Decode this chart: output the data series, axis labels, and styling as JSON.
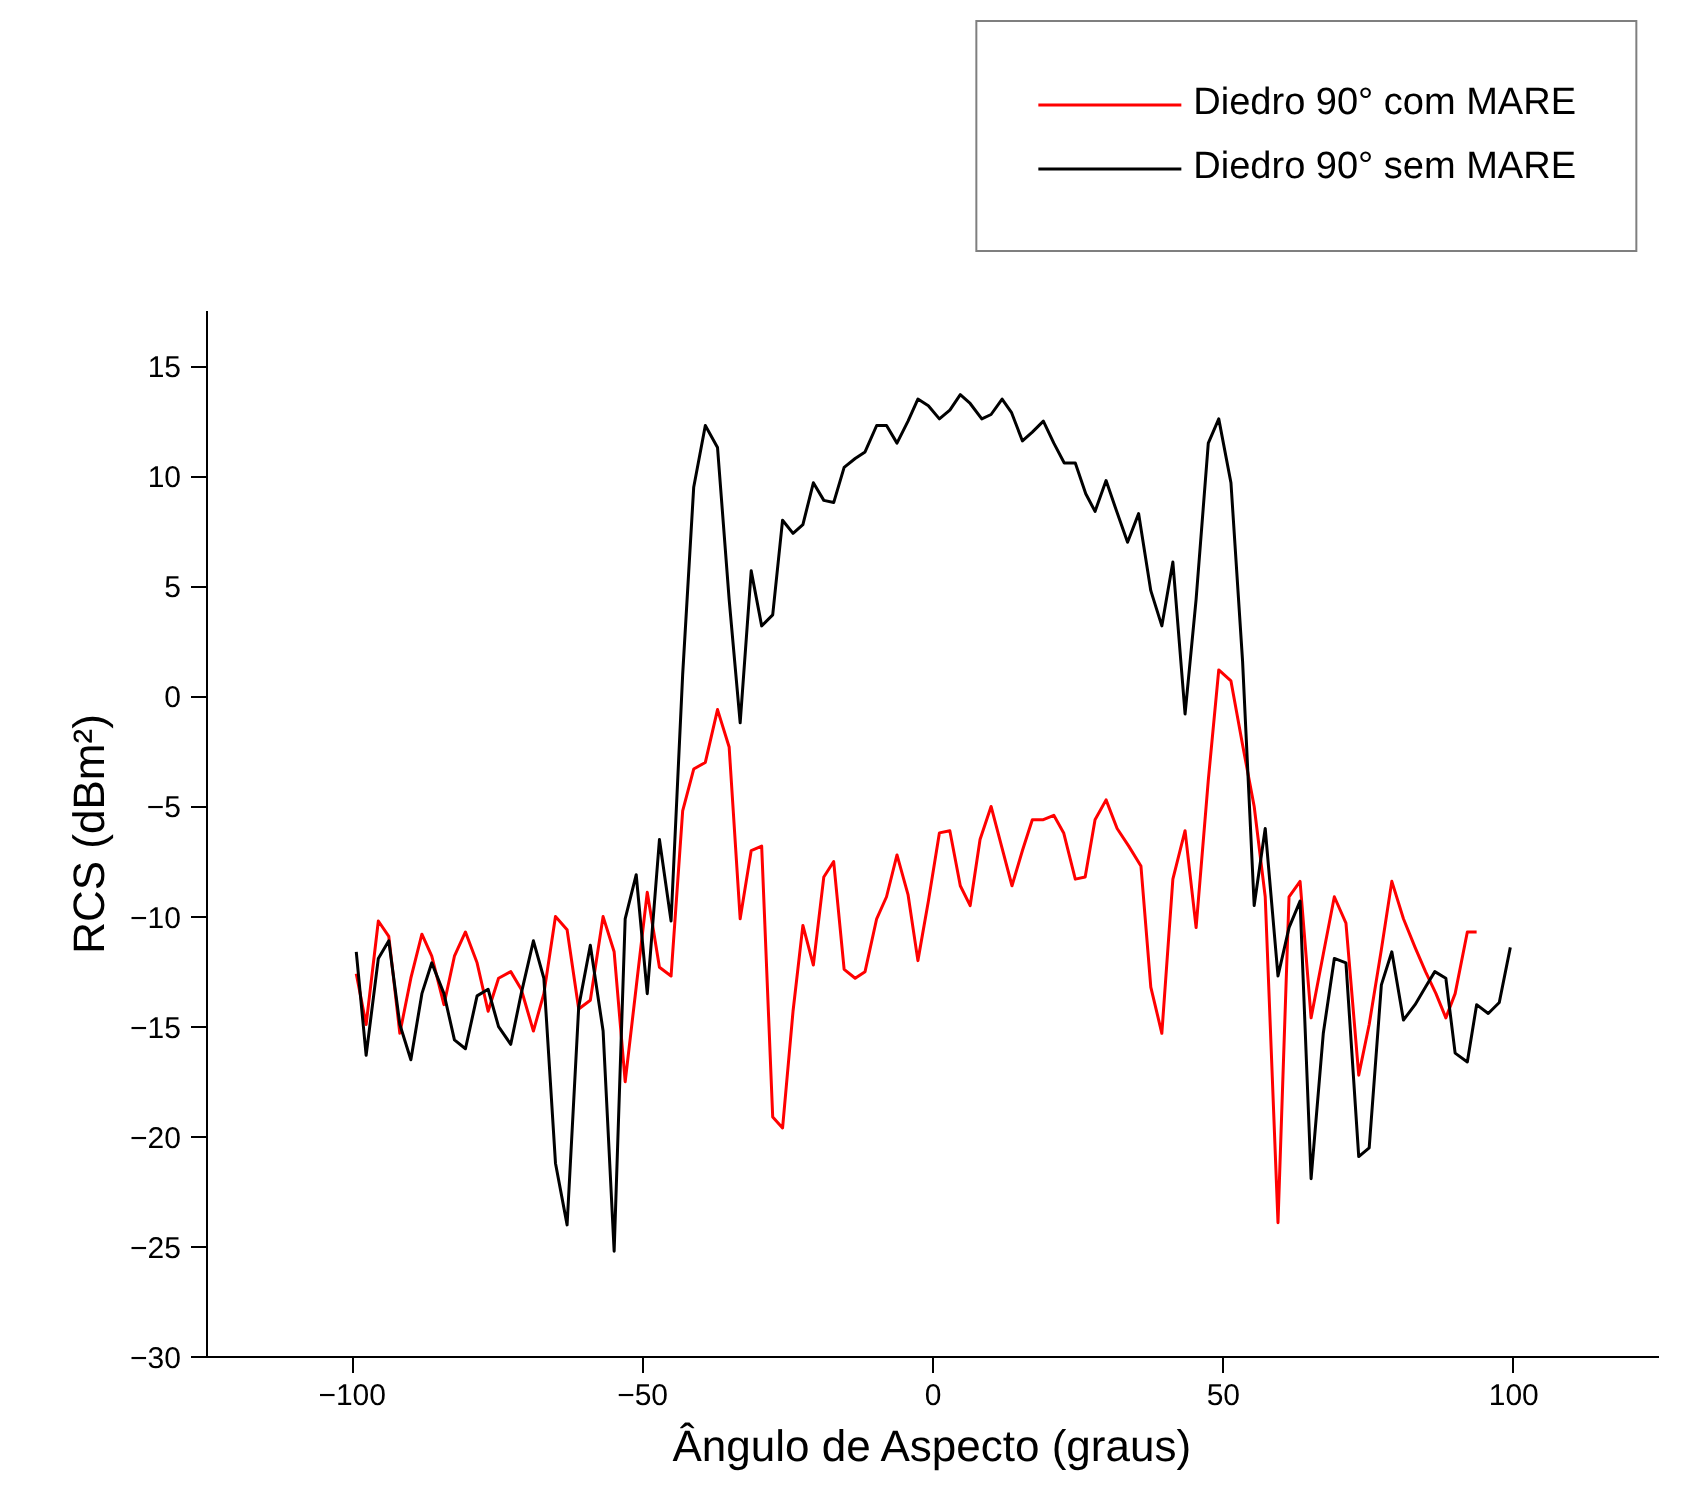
{
  "chart_data": {
    "type": "line",
    "xlabel": "Ângulo de Aspecto (graus)",
    "ylabel": "RCS (dBm²)",
    "xlim": [
      -125,
      125
    ],
    "xticks": [
      -100,
      -50,
      0,
      50,
      100
    ],
    "ylim": [
      -30,
      17.5
    ],
    "yticks": [
      -30,
      -25,
      -20,
      -15,
      -10,
      -5,
      0,
      5,
      10,
      15
    ],
    "grid": false,
    "legend": "top right",
    "series": [
      {
        "name": "Diedro 90° com MARE",
        "color": "#ff0000",
        "x": [
          -99.3,
          -97.6,
          -95.5,
          -93.7,
          -91.8,
          -89.9,
          -88.0,
          -86.3,
          -84.2,
          -82.4,
          -80.5,
          -78.5,
          -76.6,
          -74.8,
          -72.7,
          -70.9,
          -68.8,
          -67.0,
          -65.0,
          -63.0,
          -61.0,
          -59.0,
          -56.8,
          -54.9,
          -53.0,
          -51.1,
          -49.2,
          -47.1,
          -45.1,
          -43.1,
          -41.2,
          -39.2,
          -37.1,
          -35.1,
          -33.2,
          -31.3,
          -29.5,
          -27.6,
          -25.9,
          -24.1,
          -22.4,
          -20.6,
          -18.8,
          -17.1,
          -15.3,
          -13.4,
          -11.7,
          -9.7,
          -8.0,
          -6.2,
          -4.3,
          -2.6,
          -0.8,
          1.1,
          2.9,
          4.7,
          6.4,
          8.1,
          10.0,
          11.8,
          13.6,
          15.4,
          17.1,
          19.0,
          20.8,
          22.5,
          24.5,
          26.2,
          27.9,
          29.8,
          31.7,
          33.7,
          35.8,
          37.5,
          39.4,
          41.3,
          43.4,
          45.3,
          47.4,
          49.2,
          51.3,
          53.3,
          55.3,
          57.2,
          59.4,
          61.3,
          63.2,
          65.1,
          67.2,
          69.1,
          71.1,
          73.3,
          75.1,
          77.2,
          79.0,
          81.0,
          83.0,
          84.8,
          86.6,
          88.3,
          89.9,
          92.0,
          93.6
        ],
        "values": [
          -12.6,
          -14.9,
          -10.2,
          -10.9,
          -15.3,
          -12.8,
          -10.8,
          -11.8,
          -14.0,
          -11.8,
          -10.7,
          -12.1,
          -14.3,
          -12.8,
          -12.5,
          -13.3,
          -15.2,
          -13.5,
          -10.0,
          -10.6,
          -14.2,
          -13.8,
          -10.0,
          -11.6,
          -17.5,
          -13.2,
          -8.9,
          -12.3,
          -12.7,
          -5.2,
          -3.3,
          -3.0,
          -0.6,
          -2.3,
          -10.1,
          -7.0,
          -6.8,
          -19.1,
          -19.6,
          -14.3,
          -10.4,
          -12.2,
          -8.2,
          -7.5,
          -12.4,
          -12.8,
          -12.5,
          -10.1,
          -9.1,
          -7.2,
          -9.0,
          -12.0,
          -9.3,
          -6.2,
          -6.1,
          -8.6,
          -9.5,
          -6.5,
          -5.0,
          -6.8,
          -8.6,
          -7.0,
          -5.6,
          -5.6,
          -5.4,
          -6.2,
          -8.3,
          -8.2,
          -5.6,
          -4.7,
          -6.0,
          -6.8,
          -7.7,
          -13.2,
          -15.3,
          -8.3,
          -6.1,
          -10.5,
          -3.8,
          1.2,
          0.7,
          -2.2,
          -5.0,
          -9.1,
          -23.9,
          -9.1,
          -8.4,
          -14.6,
          -11.7,
          -9.1,
          -10.3,
          -17.2,
          -14.9,
          -11.5,
          -8.4,
          -10.1,
          -11.4,
          -12.5,
          -13.5,
          -14.6,
          -13.5,
          -10.7,
          -10.7
        ]
      },
      {
        "name": "Diedro 90° sem MARE",
        "color": "#000000",
        "x": [
          -99.3,
          -97.6,
          -95.5,
          -93.7,
          -91.8,
          -89.9,
          -88.0,
          -86.3,
          -84.2,
          -82.4,
          -80.5,
          -78.5,
          -76.6,
          -74.8,
          -72.7,
          -70.9,
          -68.8,
          -67.0,
          -65.0,
          -63.0,
          -61.0,
          -59.0,
          -56.8,
          -54.9,
          -53.0,
          -51.1,
          -49.2,
          -47.1,
          -45.1,
          -43.1,
          -41.2,
          -39.2,
          -37.1,
          -35.1,
          -33.2,
          -31.3,
          -29.5,
          -27.6,
          -25.9,
          -24.1,
          -22.4,
          -20.6,
          -18.8,
          -17.1,
          -15.3,
          -13.4,
          -11.7,
          -9.7,
          -8.0,
          -6.2,
          -4.3,
          -2.6,
          -0.8,
          1.1,
          2.9,
          4.7,
          6.4,
          8.4,
          10.0,
          11.9,
          13.5,
          15.4,
          17.1,
          19.0,
          20.8,
          22.6,
          24.5,
          26.3,
          27.9,
          29.8,
          31.5,
          33.5,
          35.4,
          37.5,
          39.4,
          41.3,
          43.4,
          45.3,
          47.4,
          49.2,
          51.3,
          53.3,
          55.3,
          57.2,
          59.4,
          61.3,
          63.2,
          65.1,
          67.2,
          69.1,
          71.1,
          73.3,
          75.1,
          77.2,
          79.0,
          81.0,
          83.0,
          84.8,
          86.4,
          88.3,
          89.9,
          92.0,
          93.6,
          95.6,
          97.5,
          99.4
        ],
        "values": [
          -11.6,
          -16.3,
          -11.9,
          -11.1,
          -14.9,
          -16.5,
          -13.5,
          -12.1,
          -13.5,
          -15.6,
          -16.0,
          -13.6,
          -13.3,
          -15.0,
          -15.8,
          -13.5,
          -11.1,
          -12.8,
          -21.2,
          -24.0,
          -14.1,
          -11.3,
          -15.2,
          -25.2,
          -10.1,
          -8.1,
          -13.5,
          -6.5,
          -10.2,
          1.0,
          9.5,
          12.3,
          11.3,
          4.4,
          -1.2,
          5.7,
          3.2,
          3.7,
          8.0,
          7.4,
          7.8,
          9.7,
          8.9,
          8.8,
          10.4,
          10.8,
          11.1,
          12.3,
          12.3,
          11.5,
          12.5,
          13.5,
          13.2,
          12.6,
          13.0,
          13.7,
          13.3,
          12.6,
          12.8,
          13.5,
          12.9,
          11.6,
          12.0,
          12.5,
          11.5,
          10.6,
          10.6,
          9.2,
          8.4,
          9.8,
          8.5,
          7.0,
          8.3,
          4.8,
          3.2,
          6.1,
          -0.8,
          4.4,
          11.5,
          12.6,
          9.7,
          1.6,
          -9.5,
          -6.0,
          -12.7,
          -10.5,
          -9.3,
          -21.9,
          -15.3,
          -11.9,
          -12.1,
          -20.9,
          -20.5,
          -13.1,
          -11.6,
          -14.7,
          -14.0,
          -13.2,
          -12.5,
          -12.8,
          -16.2,
          -16.6,
          -14.0,
          -14.4,
          -13.9,
          -11.4
        ]
      }
    ]
  }
}
